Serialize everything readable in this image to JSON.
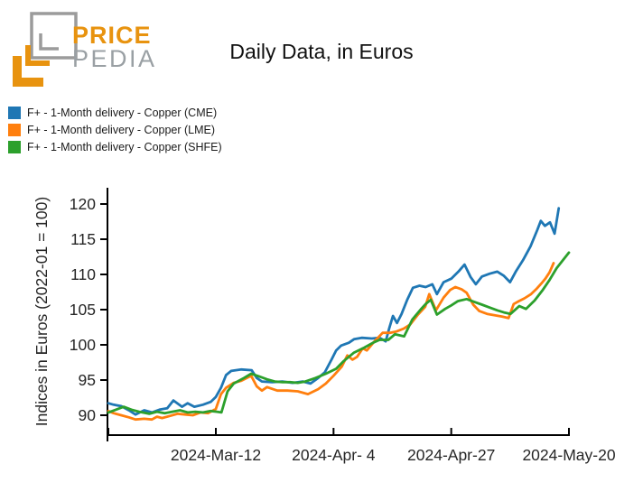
{
  "logo": {
    "brand_top": "PRICE",
    "brand_bottom": "PEDIA",
    "orange": "#E8930F",
    "gray": "#9B9B9B",
    "text_gray": "#9AA0A4"
  },
  "title": "Daily Data, in Euros",
  "legend": [
    {
      "id": "cme",
      "label": "F+ - 1-Month delivery - Copper (CME)",
      "color": "#1f77b4"
    },
    {
      "id": "lme",
      "label": "F+ - 1-Month delivery - Copper (LME)",
      "color": "#ff7f0e"
    },
    {
      "id": "shfe",
      "label": "F+ - 1-Month delivery - Copper (SHFE)",
      "color": "#2ca02c"
    }
  ],
  "chart_data": {
    "type": "line",
    "title": "Daily Data, in Euros",
    "grid": false,
    "legend_position": "top-left-outside",
    "x_axis": {
      "epoch": "2024-02-20",
      "unit": "days since 2024-02-20",
      "range": [
        0,
        90
      ],
      "ticks": [
        {
          "day": 0,
          "label": ""
        },
        {
          "day": 21,
          "label": "2024-Mar-12"
        },
        {
          "day": 44,
          "label": "2024-Apr- 4"
        },
        {
          "day": 67,
          "label": "2024-Apr-27"
        },
        {
          "day": 90,
          "label": "2024-May-20"
        }
      ]
    },
    "y_axis": {
      "label": "Indices in Euros (2022-01 = 100)",
      "ticks": [
        90,
        95,
        100,
        105,
        110,
        115,
        120
      ],
      "range": [
        87.3,
        122.2
      ]
    },
    "series": [
      {
        "id": "cme",
        "name": "F+ - 1-Month delivery - Copper (CME)",
        "color": "#1f77b4",
        "points": [
          [
            0,
            91.7
          ],
          [
            1,
            91.5
          ],
          [
            2.5,
            91.3
          ],
          [
            4,
            90.7
          ],
          [
            5.3,
            90.1
          ],
          [
            7,
            90.7
          ],
          [
            8.5,
            90.4
          ],
          [
            10,
            90.8
          ],
          [
            11.5,
            91.0
          ],
          [
            12.7,
            92.1
          ],
          [
            14.4,
            91.2
          ],
          [
            15.5,
            91.7
          ],
          [
            16.8,
            91.2
          ],
          [
            18.5,
            91.5
          ],
          [
            20,
            91.9
          ],
          [
            21,
            92.6
          ],
          [
            22,
            93.9
          ],
          [
            23,
            95.7
          ],
          [
            24,
            96.3
          ],
          [
            26,
            96.5
          ],
          [
            28,
            96.4
          ],
          [
            29,
            95.3
          ],
          [
            30,
            94.8
          ],
          [
            32,
            94.7
          ],
          [
            34,
            94.8
          ],
          [
            36,
            94.6
          ],
          [
            38,
            94.8
          ],
          [
            39.5,
            94.5
          ],
          [
            41,
            95.3
          ],
          [
            42.3,
            96.1
          ],
          [
            43.6,
            97.9
          ],
          [
            44.5,
            99.2
          ],
          [
            45.5,
            99.9
          ],
          [
            47,
            100.3
          ],
          [
            48,
            100.8
          ],
          [
            49.5,
            101.0
          ],
          [
            51.5,
            100.9
          ],
          [
            53,
            101.0
          ],
          [
            54.2,
            100.5
          ],
          [
            54.9,
            102.4
          ],
          [
            55.6,
            104.1
          ],
          [
            56.4,
            103.1
          ],
          [
            57.3,
            104.4
          ],
          [
            58.4,
            106.4
          ],
          [
            59.5,
            108.1
          ],
          [
            60.8,
            108.4
          ],
          [
            62,
            108.2
          ],
          [
            63.3,
            108.6
          ],
          [
            64.2,
            107.2
          ],
          [
            65.5,
            108.9
          ],
          [
            67,
            109.4
          ],
          [
            68.4,
            110.4
          ],
          [
            69.6,
            111.4
          ],
          [
            70.8,
            109.6
          ],
          [
            71.8,
            108.6
          ],
          [
            73,
            109.7
          ],
          [
            74.5,
            110.1
          ],
          [
            76,
            110.4
          ],
          [
            77.3,
            109.8
          ],
          [
            78.5,
            108.9
          ],
          [
            79.6,
            110.4
          ],
          [
            81,
            112.0
          ],
          [
            82.5,
            114.0
          ],
          [
            83.8,
            116.3
          ],
          [
            84.5,
            117.6
          ],
          [
            85.3,
            116.9
          ],
          [
            86.3,
            117.4
          ],
          [
            87.2,
            115.8
          ],
          [
            88,
            119.4
          ]
        ]
      },
      {
        "id": "lme",
        "name": "F+ - 1-Month delivery - Copper (LME)",
        "color": "#ff7f0e",
        "points": [
          [
            0,
            90.6
          ],
          [
            1,
            90.3
          ],
          [
            2.5,
            90.0
          ],
          [
            4,
            89.7
          ],
          [
            5.3,
            89.4
          ],
          [
            7,
            89.5
          ],
          [
            8.5,
            89.4
          ],
          [
            9.5,
            89.8
          ],
          [
            10.5,
            89.6
          ],
          [
            12,
            89.9
          ],
          [
            13.5,
            90.2
          ],
          [
            15,
            90.1
          ],
          [
            16.5,
            90.0
          ],
          [
            18,
            90.4
          ],
          [
            19.5,
            90.3
          ],
          [
            21,
            90.9
          ],
          [
            22,
            93.0
          ],
          [
            23,
            93.9
          ],
          [
            24.5,
            94.6
          ],
          [
            26,
            94.9
          ],
          [
            27.9,
            95.6
          ],
          [
            29,
            94.1
          ],
          [
            30,
            93.5
          ],
          [
            31,
            94.0
          ],
          [
            33,
            93.5
          ],
          [
            35,
            93.5
          ],
          [
            37,
            93.4
          ],
          [
            39,
            93.0
          ],
          [
            41,
            93.7
          ],
          [
            42.5,
            94.5
          ],
          [
            44,
            95.6
          ],
          [
            45.6,
            96.9
          ],
          [
            46.7,
            98.5
          ],
          [
            47.7,
            97.9
          ],
          [
            48.6,
            98.3
          ],
          [
            49.7,
            99.5
          ],
          [
            50.5,
            99.2
          ],
          [
            52,
            100.5
          ],
          [
            53.6,
            101.7
          ],
          [
            55,
            101.7
          ],
          [
            56.3,
            101.9
          ],
          [
            57.7,
            102.3
          ],
          [
            59,
            102.9
          ],
          [
            60.5,
            104.3
          ],
          [
            61.9,
            105.4
          ],
          [
            62.7,
            107.2
          ],
          [
            64,
            104.9
          ],
          [
            65.5,
            106.7
          ],
          [
            66.8,
            107.8
          ],
          [
            67.8,
            108.2
          ],
          [
            69,
            107.9
          ],
          [
            70,
            107.4
          ],
          [
            71.3,
            105.7
          ],
          [
            72.5,
            104.8
          ],
          [
            74,
            104.4
          ],
          [
            75.5,
            104.2
          ],
          [
            77,
            104.0
          ],
          [
            78.2,
            103.8
          ],
          [
            79.2,
            105.8
          ],
          [
            80.2,
            106.2
          ],
          [
            81.3,
            106.6
          ],
          [
            82.6,
            107.2
          ],
          [
            83.6,
            107.9
          ],
          [
            84.6,
            108.7
          ],
          [
            85.4,
            109.4
          ],
          [
            86.2,
            110.3
          ],
          [
            87,
            111.6
          ]
        ]
      },
      {
        "id": "shfe",
        "name": "F+ - 1-Month delivery - Copper (SHFE)",
        "color": "#2ca02c",
        "points": [
          [
            0,
            90.4
          ],
          [
            1.5,
            90.8
          ],
          [
            3,
            91.2
          ],
          [
            4.5,
            90.8
          ],
          [
            6,
            90.5
          ],
          [
            8,
            90.2
          ],
          [
            9.5,
            90.5
          ],
          [
            11,
            90.3
          ],
          [
            12.5,
            90.5
          ],
          [
            14,
            90.7
          ],
          [
            15.5,
            90.4
          ],
          [
            17,
            90.5
          ],
          [
            18.5,
            90.4
          ],
          [
            20,
            90.6
          ],
          [
            21.2,
            90.5
          ],
          [
            22.1,
            90.4
          ],
          [
            23.3,
            93.4
          ],
          [
            24.5,
            94.5
          ],
          [
            26.5,
            95.3
          ],
          [
            27.9,
            95.9
          ],
          [
            29.5,
            95.5
          ],
          [
            31,
            95.1
          ],
          [
            32.5,
            94.8
          ],
          [
            34,
            94.7
          ],
          [
            35.5,
            94.7
          ],
          [
            37,
            94.6
          ],
          [
            38.5,
            94.8
          ],
          [
            40.5,
            95.3
          ],
          [
            42.5,
            95.9
          ],
          [
            44.5,
            96.6
          ],
          [
            46,
            97.7
          ],
          [
            48,
            98.9
          ],
          [
            50,
            99.6
          ],
          [
            51.7,
            100.3
          ],
          [
            53,
            100.7
          ],
          [
            54.7,
            100.7
          ],
          [
            56,
            101.5
          ],
          [
            57.8,
            101.2
          ],
          [
            59.4,
            103.6
          ],
          [
            61,
            105.0
          ],
          [
            62,
            105.8
          ],
          [
            63,
            106.4
          ],
          [
            64.2,
            104.3
          ],
          [
            65.8,
            105.1
          ],
          [
            67,
            105.6
          ],
          [
            68.3,
            106.2
          ],
          [
            70,
            106.5
          ],
          [
            71.5,
            106.1
          ],
          [
            73,
            105.7
          ],
          [
            74.5,
            105.3
          ],
          [
            76,
            104.9
          ],
          [
            77.3,
            104.6
          ],
          [
            78.6,
            104.4
          ],
          [
            80.3,
            105.5
          ],
          [
            81.6,
            105.1
          ],
          [
            83.3,
            106.3
          ],
          [
            84.8,
            107.7
          ],
          [
            86.2,
            109.2
          ],
          [
            87.6,
            110.9
          ],
          [
            88.8,
            112.0
          ],
          [
            90,
            113.1
          ]
        ]
      }
    ]
  }
}
